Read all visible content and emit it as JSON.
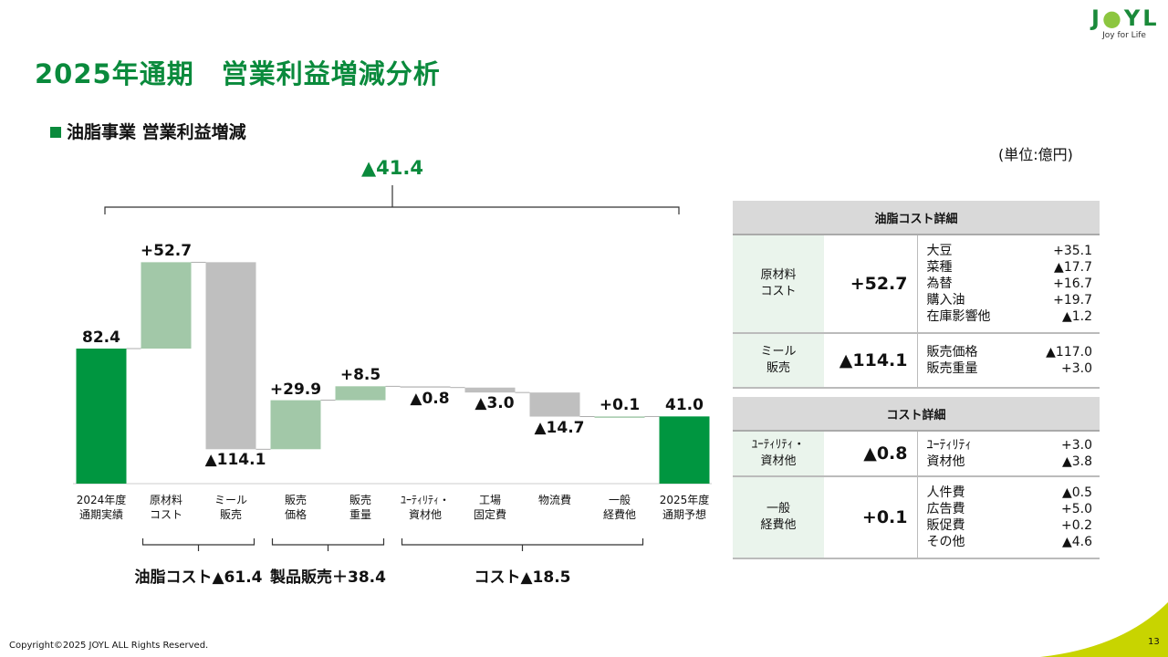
{
  "header": {
    "title": "2025年通期　営業利益増減分析",
    "logo_text": "JOYL",
    "logo_tagline": "Joy for Life"
  },
  "section": {
    "subtitle": "油脂事業  営業利益増減",
    "unit": "(単位:億円)"
  },
  "chart_data": {
    "type": "waterfall",
    "title": "油脂事業 営業利益増減",
    "ylabel": "億円",
    "total_change_label": "▲41.4",
    "categories": [
      "2024年度\n通期実績",
      "原材料\nコスト",
      "ミール\n販売",
      "販売\n価格",
      "販売\n重量",
      "ﾕｰﾃｨﾘﾃｨ・\n資材他",
      "工場\n固定費",
      "物流費",
      "一般\n経費他",
      "2025年度\n通期予想"
    ],
    "values": [
      82.4,
      52.7,
      -114.1,
      29.9,
      8.5,
      -0.8,
      -3.0,
      -14.7,
      0.1,
      41.0
    ],
    "kinds": [
      "total",
      "delta",
      "delta",
      "delta",
      "delta",
      "delta",
      "delta",
      "delta",
      "delta",
      "total"
    ],
    "labels": [
      "82.4",
      "+52.7",
      "▲114.1",
      "+29.9",
      "+8.5",
      "▲0.8",
      "▲3.0",
      "▲14.7",
      "+0.1",
      "41.0"
    ],
    "groups": [
      {
        "label": "油脂コスト▲61.4",
        "from": 1,
        "to": 2
      },
      {
        "label": "製品販売＋38.4",
        "from": 3,
        "to": 4
      },
      {
        "label": "コスト▲18.5",
        "from": 5,
        "to": 8
      }
    ],
    "colors": {
      "total": "#009640",
      "positive": "#a2c8a8",
      "negative": "#bfbfbf"
    }
  },
  "table1": {
    "header": "油脂コスト詳細",
    "rows": [
      {
        "key": "原材料\nコスト",
        "value": "+52.7",
        "details": [
          [
            "大豆",
            "+35.1"
          ],
          [
            "菜種",
            "▲17.7"
          ],
          [
            "為替",
            "+16.7"
          ],
          [
            "購入油",
            "+19.7"
          ],
          [
            "在庫影響他",
            "▲1.2"
          ]
        ]
      },
      {
        "key": "ミール\n販売",
        "value": "▲114.1",
        "details": [
          [
            "販売価格",
            "▲117.0"
          ],
          [
            "販売重量",
            "+3.0"
          ]
        ]
      }
    ]
  },
  "table2": {
    "header": "コスト詳細",
    "rows": [
      {
        "key": "ﾕｰﾃｨﾘﾃｨ・\n資材他",
        "value": "▲0.8",
        "details": [
          [
            "ﾕｰﾃｨﾘﾃｨ",
            "+3.0"
          ],
          [
            "資材他",
            "▲3.8"
          ]
        ]
      },
      {
        "key": "一般\n経費他",
        "value": "+0.1",
        "details": [
          [
            "人件費",
            "▲0.5"
          ],
          [
            "広告費",
            "+5.0"
          ],
          [
            "販促費",
            "+0.2"
          ],
          [
            "その他",
            "▲4.6"
          ]
        ]
      }
    ]
  },
  "footer": {
    "copyright": "Copyright©2025 JOYL ALL Rights Reserved.",
    "page": "13"
  }
}
